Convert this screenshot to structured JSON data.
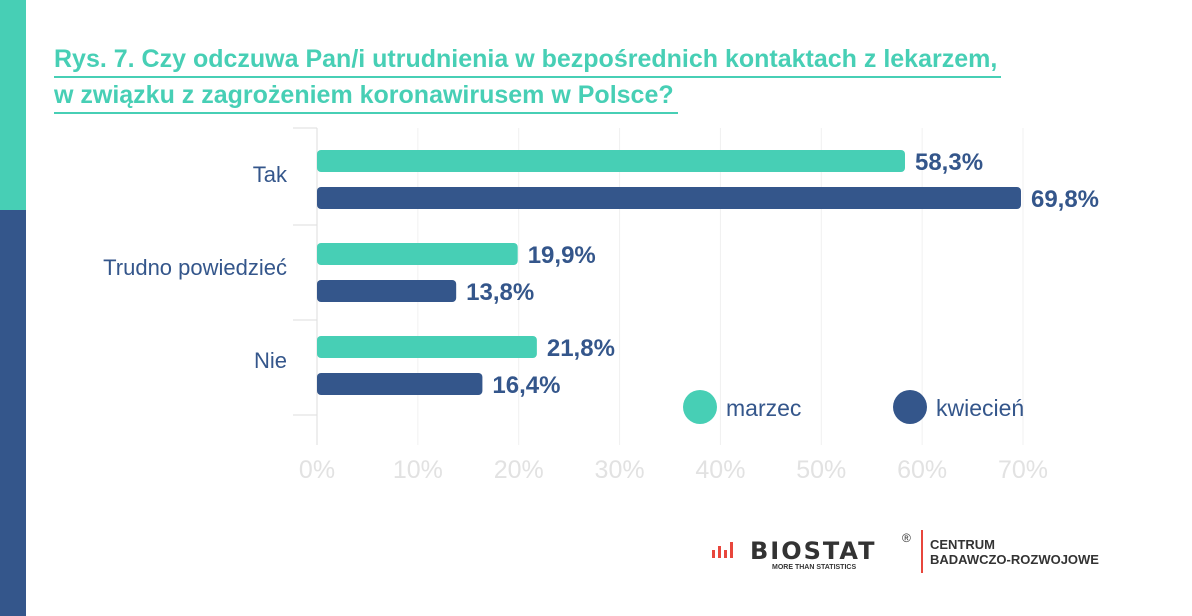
{
  "title_lines": [
    "Rys. 7. Czy odczuwa Pan/i utrudnienia w bezpośrednich kontaktach z lekarzem,",
    "w związku z zagrożeniem koronawirusem w Polsce?"
  ],
  "chart_data": {
    "type": "bar",
    "orientation": "horizontal",
    "title": "Rys. 7. Czy odczuwa Pan/i utrudnienia w bezpośrednich kontaktach z lekarzem, w związku z zagrożeniem koronawirusem w Polsce?",
    "categories": [
      "Tak",
      "Trudno powiedzieć",
      "Nie"
    ],
    "series": [
      {
        "name": "marzec",
        "color": "#47cfb5",
        "values": [
          58.3,
          19.9,
          21.8
        ],
        "labels": [
          "58,3%",
          "19,9%",
          "21,8%"
        ]
      },
      {
        "name": "kwiecień",
        "color": "#34568b",
        "values": [
          69.8,
          13.8,
          16.4
        ],
        "labels": [
          "69,8%",
          "13,8%",
          "16,4%"
        ]
      }
    ],
    "xlim": [
      0,
      70
    ],
    "xticks": [
      "0%",
      "10%",
      "20%",
      "30%",
      "40%",
      "50%",
      "60%",
      "70%"
    ],
    "grid": true,
    "legend_position": "bottom-right"
  },
  "logo": {
    "brand": "BIOSTAT",
    "tagline": "MORE THAN STATISTICS",
    "registered": "®",
    "unit_line1": "CENTRUM",
    "unit_line2": "BADAWCZO-ROZWOJOWE"
  }
}
